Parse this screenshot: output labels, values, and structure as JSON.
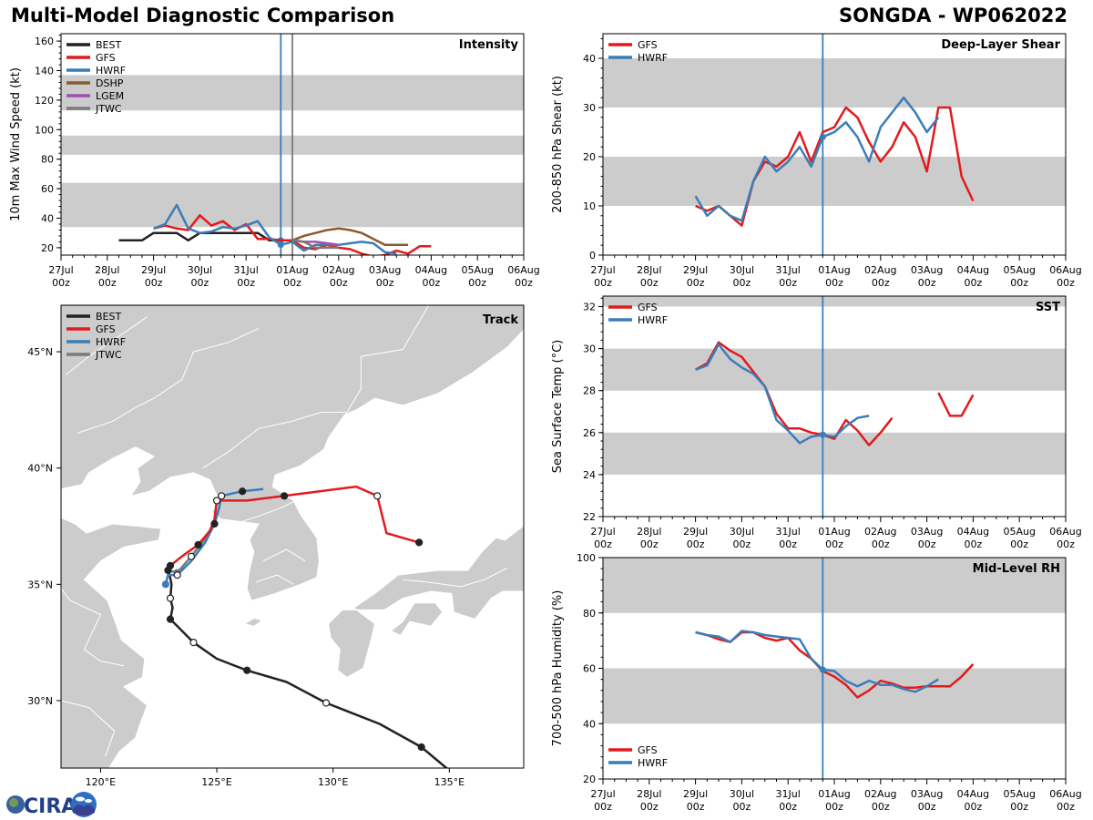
{
  "header": {
    "title": "Multi-Model Diagnostic Comparison",
    "storm": "SONGDA - WP062022"
  },
  "colors": {
    "BEST": "#222222",
    "GFS": "#e31a1c",
    "HWRF": "#3a7db8",
    "DSHP": "#8c5a2f",
    "LGEM": "#a050b0",
    "JTWC": "#7a7a7a",
    "band": "#cccccc",
    "land": "#cccccc",
    "border": "#ffffff"
  },
  "time_axis": {
    "ticks": [
      "27Jul\n00z",
      "28Jul\n00z",
      "29Jul\n00z",
      "30Jul\n00z",
      "31Jul\n00z",
      "01Aug\n00z",
      "02Aug\n00z",
      "03Aug\n00z",
      "04Aug\n00z",
      "05Aug\n00z",
      "06Aug\n00z"
    ],
    "range_days": [
      0,
      10
    ],
    "current_time_day": 4.75,
    "jtwc_time_day": 5.0
  },
  "chart_data": [
    {
      "id": "intensity",
      "type": "line",
      "title": "Intensity",
      "xlabel": "",
      "ylabel": "10m Max Wind Speed (kt)",
      "ylim": [
        15,
        165
      ],
      "yticks": [
        20,
        40,
        60,
        80,
        100,
        120,
        140,
        160
      ],
      "bands": [
        [
          34,
          64
        ],
        [
          83,
          96
        ],
        [
          113,
          137
        ]
      ],
      "legend": [
        "BEST",
        "GFS",
        "HWRF",
        "DSHP",
        "LGEM",
        "JTWC"
      ],
      "legend_position": "top-left",
      "series": [
        {
          "name": "BEST",
          "x": [
            1.25,
            1.5,
            1.75,
            2.0,
            2.25,
            2.5,
            2.75,
            3.0,
            3.25,
            3.5,
            3.75,
            4.0,
            4.25,
            4.5,
            4.75,
            5.0
          ],
          "y": [
            25,
            25,
            25,
            30,
            30,
            30,
            25,
            30,
            30,
            30,
            30,
            30,
            30,
            25,
            25,
            25
          ]
        },
        {
          "name": "GFS",
          "x": [
            2.0,
            2.25,
            2.5,
            2.75,
            3.0,
            3.25,
            3.5,
            3.75,
            4.0,
            4.25,
            4.5,
            4.75,
            5.0,
            5.25,
            5.5,
            5.75,
            6.0,
            6.25,
            6.5,
            6.75,
            7.0,
            7.25,
            7.5,
            7.75,
            8.0
          ],
          "y": [
            33,
            35,
            33,
            32,
            42,
            35,
            38,
            32,
            36,
            26,
            26,
            25,
            25,
            20,
            19,
            22,
            20,
            19,
            16,
            14,
            15,
            18,
            16,
            21,
            21
          ]
        },
        {
          "name": "HWRF",
          "x": [
            2.0,
            2.25,
            2.5,
            2.75,
            3.0,
            3.25,
            3.5,
            3.75,
            4.0,
            4.25,
            4.5,
            4.75,
            5.0,
            5.25,
            5.5,
            5.75,
            6.0,
            6.25,
            6.5,
            6.75,
            7.0,
            7.25
          ],
          "y": [
            33,
            36,
            49,
            33,
            30,
            31,
            34,
            33,
            35,
            38,
            27,
            22,
            24,
            18,
            22,
            22,
            22,
            23,
            24,
            23,
            17,
            16
          ]
        },
        {
          "name": "DSHP",
          "x": [
            5.0,
            5.25,
            5.5,
            5.75,
            6.0,
            6.25,
            6.5,
            6.75,
            7.0,
            7.25,
            7.5
          ],
          "y": [
            25,
            28,
            30,
            32,
            33,
            32,
            30,
            26,
            22,
            22,
            22
          ]
        },
        {
          "name": "LGEM",
          "x": [
            5.0,
            5.25,
            5.5,
            5.75,
            6.0
          ],
          "y": [
            25,
            24,
            24,
            23,
            22
          ]
        },
        {
          "name": "JTWC",
          "x": [
            5.0,
            5.25,
            5.5,
            5.75,
            6.0
          ],
          "y": [
            25,
            24,
            20,
            20,
            20
          ]
        }
      ]
    },
    {
      "id": "shear",
      "type": "line",
      "title": "Deep-Layer Shear",
      "xlabel": "",
      "ylabel": "200-850 hPa Shear (kt)",
      "ylim": [
        0,
        45
      ],
      "yticks": [
        0,
        10,
        20,
        30,
        40
      ],
      "bands": [
        [
          10,
          20
        ],
        [
          30,
          40
        ]
      ],
      "legend": [
        "GFS",
        "HWRF"
      ],
      "legend_position": "top-left",
      "series": [
        {
          "name": "GFS",
          "x": [
            2.0,
            2.25,
            2.5,
            2.75,
            3.0,
            3.25,
            3.5,
            3.75,
            4.0,
            4.25,
            4.5,
            4.75,
            5.0,
            5.25,
            5.5,
            5.75,
            6.0,
            6.25,
            6.5,
            6.75,
            7.0,
            7.25,
            7.5,
            7.75,
            8.0
          ],
          "y": [
            10,
            9,
            10,
            8,
            6,
            15,
            19,
            18,
            20,
            25,
            19,
            25,
            26,
            30,
            28,
            23,
            19,
            22,
            27,
            24,
            17,
            30,
            30,
            16,
            11
          ]
        },
        {
          "name": "HWRF",
          "x": [
            2.0,
            2.25,
            2.5,
            2.75,
            3.0,
            3.25,
            3.5,
            3.75,
            4.0,
            4.25,
            4.5,
            4.75,
            5.0,
            5.25,
            5.5,
            5.75,
            6.0,
            6.25,
            6.5,
            6.75,
            7.0,
            7.25
          ],
          "y": [
            12,
            8,
            10,
            8,
            7,
            15,
            20,
            17,
            19,
            22,
            18,
            24,
            25,
            27,
            24,
            19,
            26,
            29,
            32,
            29,
            25,
            28
          ]
        }
      ]
    },
    {
      "id": "sst",
      "type": "line",
      "title": "SST",
      "xlabel": "",
      "ylabel": "Sea Surface Temp (°C)",
      "ylim": [
        22,
        32.5
      ],
      "yticks": [
        22,
        24,
        26,
        28,
        30,
        32
      ],
      "bands": [
        [
          24,
          26
        ],
        [
          28,
          30
        ],
        [
          32,
          34
        ]
      ],
      "legend": [
        "GFS",
        "HWRF"
      ],
      "legend_position": "top-left",
      "series": [
        {
          "name": "GFS",
          "segments": [
            {
              "x": [
                2.0,
                2.25,
                2.5,
                2.75,
                3.0,
                3.25,
                3.5,
                3.75,
                4.0,
                4.25,
                4.5,
                4.75,
                5.0,
                5.25,
                5.5,
                5.75,
                6.0,
                6.25
              ],
              "y": [
                29.0,
                29.3,
                30.3,
                29.9,
                29.6,
                28.9,
                28.2,
                26.9,
                26.2,
                26.2,
                26.0,
                25.9,
                25.7,
                26.6,
                26.1,
                25.4,
                26.0,
                26.7
              ]
            },
            {
              "x": [
                7.25,
                7.5,
                7.75,
                8.0
              ],
              "y": [
                27.9,
                26.8,
                26.8,
                27.8
              ]
            }
          ]
        },
        {
          "name": "HWRF",
          "segments": [
            {
              "x": [
                2.0,
                2.25,
                2.5,
                2.75,
                3.0,
                3.25,
                3.5,
                3.75,
                4.0,
                4.25,
                4.5,
                4.75,
                5.0,
                5.25,
                5.5,
                5.75
              ],
              "y": [
                29.0,
                29.2,
                30.2,
                29.5,
                29.1,
                28.8,
                28.2,
                26.6,
                26.1,
                25.5,
                25.8,
                25.9,
                25.8,
                26.3,
                26.7,
                26.8
              ]
            }
          ]
        }
      ]
    },
    {
      "id": "rh",
      "type": "line",
      "title": "Mid-Level RH",
      "xlabel": "",
      "ylabel": "700-500 hPa Humidity (%)",
      "ylim": [
        20,
        100
      ],
      "yticks": [
        20,
        40,
        60,
        80,
        100
      ],
      "bands": [
        [
          40,
          60
        ],
        [
          80,
          100
        ]
      ],
      "legend": [
        "GFS",
        "HWRF"
      ],
      "legend_position": "bottom-left",
      "series": [
        {
          "name": "GFS",
          "x": [
            2.0,
            2.25,
            2.5,
            2.75,
            3.0,
            3.25,
            3.5,
            3.75,
            4.0,
            4.25,
            4.5,
            4.75,
            5.0,
            5.25,
            5.5,
            5.75,
            6.0,
            6.25,
            6.5,
            6.75,
            7.0,
            7.25,
            7.5,
            7.75,
            8.0
          ],
          "y": [
            73,
            72,
            70.5,
            69.5,
            73,
            73,
            71,
            70,
            71,
            66.5,
            63.5,
            59,
            57,
            54,
            49.5,
            52,
            55.5,
            54.5,
            53,
            53,
            53.5,
            53.5,
            53.5,
            57,
            61.5
          ]
        },
        {
          "name": "HWRF",
          "x": [
            2.0,
            2.25,
            2.5,
            2.75,
            3.0,
            3.25,
            3.5,
            3.75,
            4.0,
            4.25,
            4.5,
            4.75,
            5.0,
            5.25,
            5.5,
            5.75,
            6.0,
            6.25,
            6.5,
            6.75,
            7.0,
            7.25
          ],
          "y": [
            73,
            72,
            71.5,
            69.5,
            73.5,
            73,
            72,
            71.5,
            71,
            70.5,
            63.5,
            59.5,
            59,
            55.5,
            53.5,
            55.5,
            54,
            54,
            52.5,
            51.5,
            53.5,
            56
          ]
        }
      ]
    },
    {
      "id": "track",
      "type": "scatter",
      "title": "Track",
      "xlabel": "",
      "ylabel": "",
      "xlim_lon": [
        118.3,
        138.2
      ],
      "ylim_lat": [
        27.1,
        47.0
      ],
      "xticks": [
        {
          "v": 120,
          "label": "120°E"
        },
        {
          "v": 125,
          "label": "125°E"
        },
        {
          "v": 130,
          "label": "130°E"
        },
        {
          "v": 135,
          "label": "135°E"
        }
      ],
      "yticks": [
        {
          "v": 30,
          "label": "30°N"
        },
        {
          "v": 35,
          "label": "35°N"
        },
        {
          "v": 40,
          "label": "40°N"
        },
        {
          "v": 45,
          "label": "45°N"
        }
      ],
      "legend": [
        "BEST",
        "GFS",
        "HWRF",
        "JTWC"
      ],
      "legend_position": "top-left",
      "series": [
        {
          "name": "BEST",
          "lon": [
            135.0,
            133.8,
            132.0,
            129.7,
            128.0,
            126.3,
            125.0,
            124.0,
            123.4,
            123.0,
            123.1,
            123.0,
            123.05,
            122.95,
            122.9
          ],
          "lat": [
            27.0,
            28.0,
            29.0,
            29.9,
            30.8,
            31.3,
            31.8,
            32.5,
            33.1,
            33.5,
            34.0,
            34.4,
            35.0,
            35.5,
            35.6
          ],
          "markers": [
            {
              "i": 1,
              "fill": "closed"
            },
            {
              "i": 3,
              "fill": "open"
            },
            {
              "i": 5,
              "fill": "closed"
            },
            {
              "i": 7,
              "fill": "open"
            },
            {
              "i": 9,
              "fill": "closed"
            },
            {
              "i": 11,
              "fill": "open"
            },
            {
              "i": 14,
              "fill": "closed"
            }
          ]
        },
        {
          "name": "GFS",
          "lon": [
            122.9,
            123.0,
            123.5,
            124.2,
            124.7,
            124.9,
            125.0,
            125.3,
            126.3,
            127.9,
            131.0,
            131.9,
            132.3,
            133.7
          ],
          "lat": [
            35.6,
            35.8,
            36.2,
            36.7,
            37.3,
            37.8,
            38.6,
            38.6,
            38.6,
            38.8,
            39.2,
            38.8,
            37.2,
            36.8
          ],
          "markers": [
            {
              "i": 1,
              "fill": "closed"
            },
            {
              "i": 3,
              "fill": "closed"
            },
            {
              "i": 6,
              "fill": "open"
            },
            {
              "i": 9,
              "fill": "closed"
            },
            {
              "i": 11,
              "fill": "open"
            },
            {
              "i": 13,
              "fill": "closed"
            }
          ]
        },
        {
          "name": "HWRF",
          "lon": [
            122.8,
            122.9,
            123.3,
            123.9,
            124.5,
            124.9,
            125.1,
            125.2,
            126.1,
            127.0
          ],
          "lat": [
            35.0,
            35.4,
            35.4,
            36.0,
            36.8,
            37.6,
            38.3,
            38.8,
            39.0,
            39.1
          ],
          "markers": [
            {
              "i": 0,
              "fill": "closed-blue"
            },
            {
              "i": 2,
              "fill": "open"
            },
            {
              "i": 5,
              "fill": "closed"
            },
            {
              "i": 7,
              "fill": "open"
            },
            {
              "i": 8,
              "fill": "closed"
            }
          ]
        },
        {
          "name": "JTWC",
          "lon": [
            122.9,
            123.3,
            123.9,
            124.6,
            125.0
          ],
          "lat": [
            35.6,
            35.5,
            36.2,
            37.1,
            37.9
          ],
          "markers": [
            {
              "i": 1,
              "fill": "closed-gray"
            },
            {
              "i": 2,
              "fill": "open"
            }
          ]
        }
      ]
    }
  ],
  "logo": {
    "text": "CIRA"
  }
}
